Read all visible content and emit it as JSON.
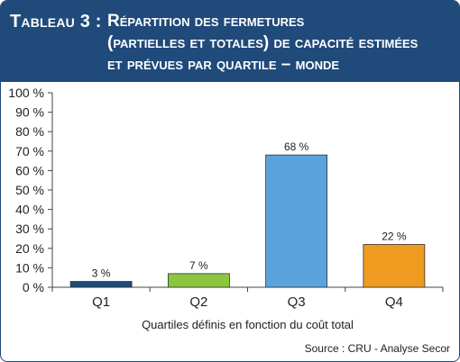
{
  "header": {
    "title_prefix": "Tableau 3 :",
    "title_lines": [
      "Répartition des fermetures",
      "(partielles et totales) de capacité estimées",
      "et prévues par quartile – monde"
    ]
  },
  "chart_data": {
    "type": "bar",
    "categories": [
      "Q1",
      "Q2",
      "Q3",
      "Q4"
    ],
    "values": [
      3,
      7,
      68,
      22
    ],
    "value_labels": [
      "3 %",
      "7 %",
      "68 %",
      "22 %"
    ],
    "bar_colors": [
      "#1f4a7a",
      "#8cc63f",
      "#5ba3dc",
      "#ee9b1f"
    ],
    "ylim": [
      0,
      100
    ],
    "yticks": [
      "0 %",
      "10 %",
      "20 %",
      "30 %",
      "40 %",
      "50 %",
      "60 %",
      "70 %",
      "80 %",
      "90 %",
      "100 %"
    ],
    "xlabel": "Quartiles définis en fonction du coût total",
    "grid": false,
    "source": "Source : CRU - Analyse Secor"
  },
  "colors": {
    "header_bg": "#1f4a7a",
    "axis": "#444444"
  }
}
